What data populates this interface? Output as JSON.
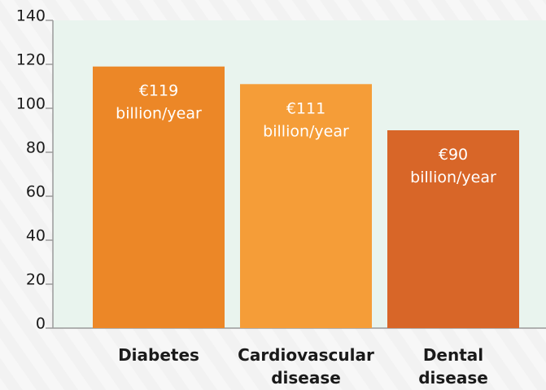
{
  "chart_data": {
    "type": "bar",
    "categories": [
      "Diabetes",
      "Cardiovascular disease",
      "Dental disease"
    ],
    "values": [
      119,
      111,
      90
    ],
    "value_labels": [
      "€119 billion/year",
      "€111 billion/year",
      "€90 billion/year"
    ],
    "colors": [
      "#ec8727",
      "#f59d38",
      "#d86628"
    ],
    "ylim": [
      0,
      140
    ],
    "yticks": [
      0,
      20,
      40,
      60,
      80,
      100,
      120,
      140
    ]
  }
}
